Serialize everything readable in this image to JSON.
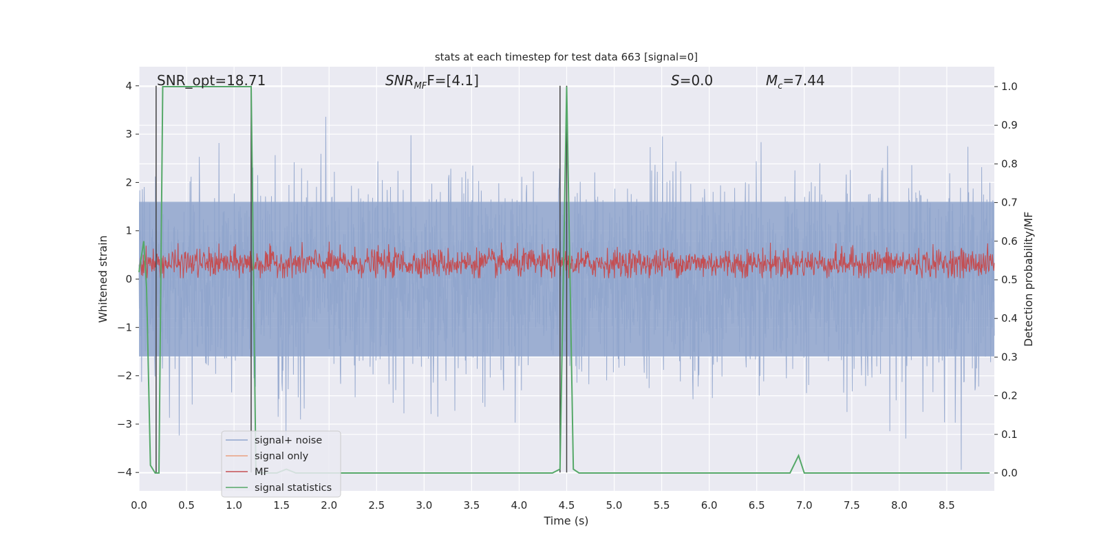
{
  "chart_data": {
    "type": "line",
    "title": "stats at each timestep for test data 663 [signal=0]",
    "xlabel": "Time (s)",
    "ylabel": "Whitened strain",
    "y2label": "Detection probability/MF",
    "xlim": [
      0.0,
      9.0
    ],
    "ylim": [
      -4.35,
      4.4
    ],
    "y2lim": [
      -0.05,
      1.04
    ],
    "xticks": [
      "0.0",
      "0.5",
      "1.0",
      "1.5",
      "2.0",
      "2.5",
      "3.0",
      "3.5",
      "4.0",
      "4.5",
      "5.0",
      "5.5",
      "6.0",
      "6.5",
      "7.0",
      "7.5",
      "8.0",
      "8.5"
    ],
    "yticks": [
      "4",
      "3",
      "2",
      "1",
      "0",
      "−1",
      "−2",
      "−3",
      "−4"
    ],
    "y2ticks": [
      "1.0",
      "0.9",
      "0.8",
      "0.7",
      "0.6",
      "0.5",
      "0.4",
      "0.3",
      "0.2",
      "0.1",
      "0.0"
    ],
    "annotations": {
      "snr_opt": "SNR_opt=18.71",
      "snr_mf_base": "SNR",
      "snr_mf_sub": "MF",
      "snr_mf_val": "F=[4.1]",
      "s_base": "S",
      "s_val": "=0.0",
      "mc_base": "M",
      "mc_sub": "c",
      "mc_val": "=7.44"
    },
    "legend_position": "lower-left",
    "series": [
      {
        "name": "signal+ noise",
        "color": "#8fa4cc",
        "axis": "left",
        "note": "whitened strain, noise amplitude ~ ±1.6 typical, peaks to ±4"
      },
      {
        "name": "signal only",
        "color": "#e9a080",
        "axis": "left",
        "values": []
      },
      {
        "name": "MF",
        "color": "#c44e52",
        "axis": "left",
        "note": "matched-filter output, ~0.0 to 0.8"
      },
      {
        "name": "signal statistics",
        "color": "#55a868",
        "axis": "right",
        "x": [
          0.0,
          0.05,
          0.08,
          0.12,
          0.17,
          0.21,
          0.25,
          0.35,
          0.6,
          1.0,
          1.18,
          1.23,
          1.3,
          1.45,
          1.55,
          1.65,
          2.0,
          4.0,
          4.35,
          4.43,
          4.5,
          4.57,
          4.63,
          6.85,
          6.94,
          7.0,
          7.4,
          8.0,
          8.95
        ],
        "values": [
          0.52,
          0.6,
          0.48,
          0.02,
          0.0,
          0.0,
          1.0,
          1.0,
          1.0,
          1.0,
          1.0,
          0.0,
          0.0,
          0.0,
          0.01,
          0.0,
          0.0,
          0.0,
          0.0,
          0.01,
          1.0,
          0.01,
          0.0,
          0.0,
          0.045,
          0.0,
          0.0,
          0.0,
          0.0
        ]
      }
    ],
    "vertical_lines": [
      0.18,
      1.18,
      4.43,
      4.5
    ]
  }
}
